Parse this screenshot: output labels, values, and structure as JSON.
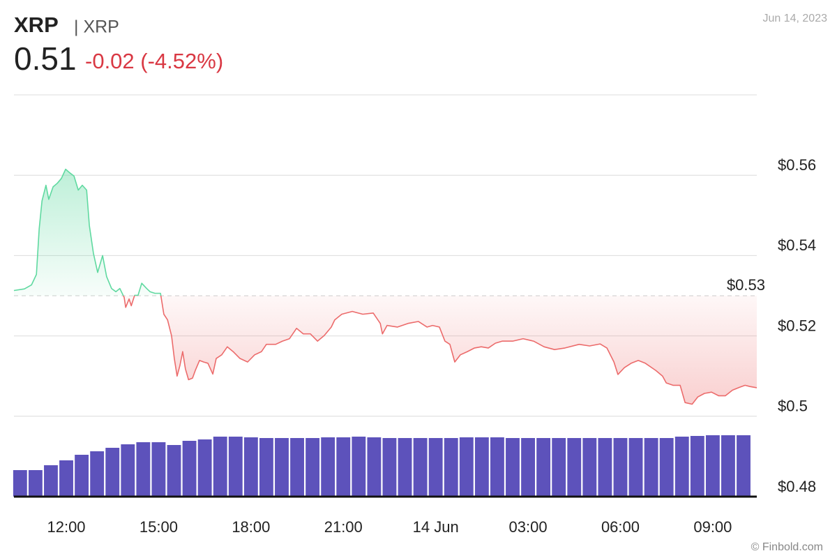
{
  "chart_data": {
    "type": "line",
    "symbol": "XRP",
    "name": "| XRP",
    "price": "0.51",
    "change": "-0.02 (-4.52%)",
    "date": "Jun 14, 2023",
    "credit": "© Finbold.com",
    "xlim": [
      10.3,
      34.43
    ],
    "xticks": [
      {
        "value": 12,
        "label": "12:00"
      },
      {
        "value": 15,
        "label": "15:00"
      },
      {
        "value": 18,
        "label": "18:00"
      },
      {
        "value": 21,
        "label": "21:00"
      },
      {
        "value": 24,
        "label": "14 Jun"
      },
      {
        "value": 27,
        "label": "03:00"
      },
      {
        "value": 30,
        "label": "06:00"
      },
      {
        "value": 33,
        "label": "09:00"
      }
    ],
    "ylim": [
      0.48,
      0.58
    ],
    "yticks": [
      {
        "value": 0.48,
        "label": "$0.48"
      },
      {
        "value": 0.5,
        "label": "$0.5"
      },
      {
        "value": 0.52,
        "label": "$0.52"
      },
      {
        "value": 0.54,
        "label": "$0.54"
      },
      {
        "value": 0.56,
        "label": "$0.56"
      }
    ],
    "grid": true,
    "reference": {
      "value": 0.53,
      "label": "$0.53"
    },
    "up_color": "#5fd9a0",
    "down_color": "#ec6b6b",
    "x": [
      10.3,
      10.64,
      10.87,
      11.03,
      11.12,
      11.21,
      11.34,
      11.43,
      11.57,
      11.71,
      11.84,
      11.98,
      12.11,
      12.25,
      12.39,
      12.52,
      12.66,
      12.75,
      12.88,
      13.02,
      13.18,
      13.31,
      13.47,
      13.61,
      13.74,
      13.88,
      13.93,
      14.04,
      14.11,
      14.22,
      14.33,
      14.45,
      14.61,
      14.72,
      14.88,
      15.06,
      15.17,
      15.29,
      15.42,
      15.51,
      15.6,
      15.69,
      15.78,
      15.87,
      15.97,
      16.1,
      16.19,
      16.33,
      16.46,
      16.6,
      16.76,
      16.87,
      17.05,
      17.23,
      17.42,
      17.64,
      17.89,
      18.12,
      18.34,
      18.5,
      18.8,
      19.02,
      19.25,
      19.48,
      19.7,
      19.93,
      20.16,
      20.38,
      20.61,
      20.72,
      20.95,
      21.29,
      21.63,
      21.97,
      22.2,
      22.27,
      22.42,
      22.76,
      23.1,
      23.44,
      23.72,
      23.9,
      24.12,
      24.3,
      24.46,
      24.62,
      24.8,
      25.03,
      25.26,
      25.48,
      25.71,
      25.94,
      26.16,
      26.5,
      26.84,
      27.18,
      27.52,
      27.86,
      28.2,
      28.66,
      29.0,
      29.34,
      29.56,
      29.79,
      29.92,
      30.13,
      30.35,
      30.58,
      30.81,
      31.15,
      31.37,
      31.49,
      31.71,
      31.94,
      32.1,
      32.33,
      32.51,
      32.73,
      32.96,
      33.19,
      33.41,
      33.64,
      33.87,
      34.05,
      34.21,
      34.43
    ],
    "series": [
      {
        "name": "XRP",
        "values": [
          0.5313,
          0.5317,
          0.5327,
          0.5353,
          0.5467,
          0.5536,
          0.5575,
          0.554,
          0.5571,
          0.558,
          0.5592,
          0.5615,
          0.5606,
          0.5598,
          0.5563,
          0.5575,
          0.5563,
          0.5475,
          0.5406,
          0.5358,
          0.54,
          0.5348,
          0.5318,
          0.531,
          0.5318,
          0.5296,
          0.5271,
          0.5292,
          0.5275,
          0.5301,
          0.5301,
          0.5331,
          0.5318,
          0.531,
          0.5306,
          0.5306,
          0.5254,
          0.524,
          0.52,
          0.5144,
          0.51,
          0.5126,
          0.5161,
          0.5118,
          0.5091,
          0.5095,
          0.5114,
          0.5139,
          0.5135,
          0.5132,
          0.5105,
          0.5144,
          0.5153,
          0.5173,
          0.5161,
          0.5144,
          0.5135,
          0.5153,
          0.5161,
          0.5179,
          0.5179,
          0.5187,
          0.5193,
          0.5219,
          0.5205,
          0.5205,
          0.5187,
          0.5201,
          0.5222,
          0.524,
          0.5254,
          0.5261,
          0.5254,
          0.5257,
          0.5231,
          0.5205,
          0.5226,
          0.5222,
          0.5231,
          0.5236,
          0.5222,
          0.5226,
          0.5222,
          0.5187,
          0.5179,
          0.5135,
          0.5153,
          0.5161,
          0.517,
          0.5173,
          0.517,
          0.5182,
          0.5187,
          0.5187,
          0.5193,
          0.5187,
          0.5173,
          0.5166,
          0.517,
          0.5179,
          0.5175,
          0.518,
          0.517,
          0.5135,
          0.5104,
          0.5121,
          0.5132,
          0.5139,
          0.5132,
          0.5114,
          0.51,
          0.5083,
          0.5077,
          0.5077,
          0.5034,
          0.503,
          0.5048,
          0.5057,
          0.506,
          0.5051,
          0.5051,
          0.5065,
          0.5072,
          0.5077,
          0.5074,
          0.5071
        ]
      }
    ],
    "volume": {
      "color": "#4b3fb4",
      "vlim": [
        0,
        100
      ],
      "x": [
        10.5,
        11,
        11.5,
        12,
        12.5,
        13,
        13.5,
        14,
        14.5,
        15,
        15.5,
        16,
        16.5,
        17,
        17.5,
        18,
        18.5,
        19,
        19.5,
        20,
        20.5,
        21,
        21.5,
        22,
        22.5,
        23,
        23.5,
        24,
        24.5,
        25,
        25.5,
        26,
        26.5,
        27,
        27.5,
        28,
        28.5,
        29,
        29.5,
        30,
        30.5,
        31,
        31.5,
        32,
        32.5,
        33,
        33.5,
        34
      ],
      "values": [
        38,
        38,
        45,
        52,
        60,
        65,
        70,
        75,
        78,
        78,
        74,
        80,
        82,
        86,
        86,
        85,
        84,
        84,
        84,
        84,
        85,
        85,
        86,
        85,
        84,
        84,
        84,
        84,
        84,
        85,
        85,
        85,
        84,
        84,
        84,
        84,
        84,
        84,
        84,
        84,
        84,
        84,
        84,
        86,
        87,
        88,
        88,
        88
      ]
    }
  }
}
